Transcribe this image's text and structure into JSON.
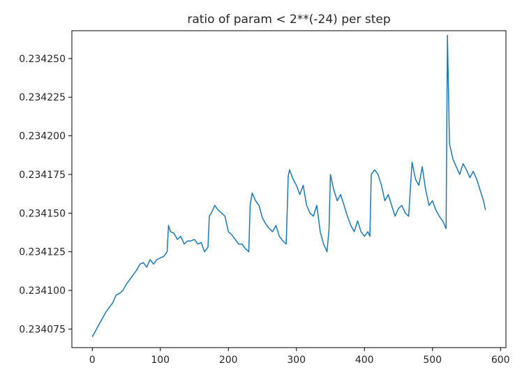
{
  "chart_data": {
    "type": "line",
    "title": "ratio of param < 2**(-24) per step",
    "xlabel": "",
    "ylabel": "",
    "xlim": [
      -30,
      608
    ],
    "ylim": [
      0.234063,
      0.234268
    ],
    "xticks": [
      0,
      100,
      200,
      300,
      400,
      500,
      600
    ],
    "xtick_labels": [
      "0",
      "100",
      "200",
      "300",
      "400",
      "500",
      "600"
    ],
    "yticks": [
      0.234075,
      0.2341,
      0.234125,
      0.23415,
      0.234175,
      0.2342,
      0.234225,
      0.23425
    ],
    "ytick_labels": [
      "0.234075",
      "0.234100",
      "0.234125",
      "0.234150",
      "0.234175",
      "0.234200",
      "0.234225",
      "0.234250"
    ],
    "grid": false,
    "series": [
      {
        "color": "#1f77b4",
        "x": [
          0,
          5,
          10,
          15,
          20,
          25,
          30,
          35,
          40,
          45,
          50,
          55,
          60,
          65,
          70,
          75,
          80,
          85,
          90,
          95,
          100,
          105,
          110,
          112,
          115,
          120,
          125,
          130,
          135,
          140,
          145,
          150,
          155,
          160,
          165,
          170,
          172,
          175,
          180,
          185,
          190,
          195,
          200,
          205,
          210,
          215,
          220,
          225,
          230,
          232,
          235,
          240,
          245,
          250,
          255,
          260,
          265,
          270,
          275,
          280,
          285,
          288,
          290,
          295,
          300,
          305,
          310,
          315,
          320,
          325,
          330,
          335,
          340,
          345,
          348,
          350,
          355,
          360,
          365,
          370,
          375,
          380,
          385,
          390,
          395,
          400,
          405,
          408,
          410,
          415,
          420,
          425,
          430,
          435,
          440,
          445,
          450,
          455,
          460,
          465,
          470,
          475,
          480,
          485,
          490,
          495,
          500,
          505,
          510,
          515,
          520,
          522,
          525,
          530,
          535,
          540,
          545,
          550,
          555,
          560,
          565,
          570,
          575,
          578
        ],
        "y": [
          0.23407,
          0.234074,
          0.234078,
          0.234082,
          0.234086,
          0.234089,
          0.234092,
          0.234097,
          0.234098,
          0.2341,
          0.234104,
          0.234107,
          0.23411,
          0.234113,
          0.234117,
          0.234118,
          0.234115,
          0.23412,
          0.234117,
          0.23412,
          0.234121,
          0.234122,
          0.234125,
          0.234142,
          0.234138,
          0.234137,
          0.234133,
          0.234135,
          0.23413,
          0.234132,
          0.234132,
          0.234133,
          0.23413,
          0.234131,
          0.234125,
          0.234128,
          0.234148,
          0.23415,
          0.234155,
          0.234152,
          0.23415,
          0.234148,
          0.234138,
          0.234136,
          0.234133,
          0.23413,
          0.23413,
          0.234127,
          0.234125,
          0.234155,
          0.234163,
          0.234158,
          0.234155,
          0.234147,
          0.234143,
          0.23414,
          0.234138,
          0.234142,
          0.234135,
          0.234132,
          0.23413,
          0.234174,
          0.234178,
          0.234172,
          0.234168,
          0.234162,
          0.234168,
          0.234155,
          0.23415,
          0.234148,
          0.234155,
          0.234138,
          0.23413,
          0.234125,
          0.23414,
          0.234175,
          0.234165,
          0.234158,
          0.234162,
          0.234155,
          0.234148,
          0.234142,
          0.234138,
          0.234145,
          0.234138,
          0.234135,
          0.234138,
          0.234135,
          0.234175,
          0.234178,
          0.234175,
          0.234168,
          0.234158,
          0.234162,
          0.234155,
          0.234148,
          0.234153,
          0.234155,
          0.23415,
          0.234148,
          0.234183,
          0.234172,
          0.234168,
          0.23418,
          0.234165,
          0.234155,
          0.234158,
          0.234152,
          0.234148,
          0.234145,
          0.23414,
          0.234265,
          0.234195,
          0.234185,
          0.23418,
          0.234175,
          0.234182,
          0.234178,
          0.234173,
          0.234177,
          0.234172,
          0.234165,
          0.234158,
          0.234152
        ]
      }
    ]
  }
}
